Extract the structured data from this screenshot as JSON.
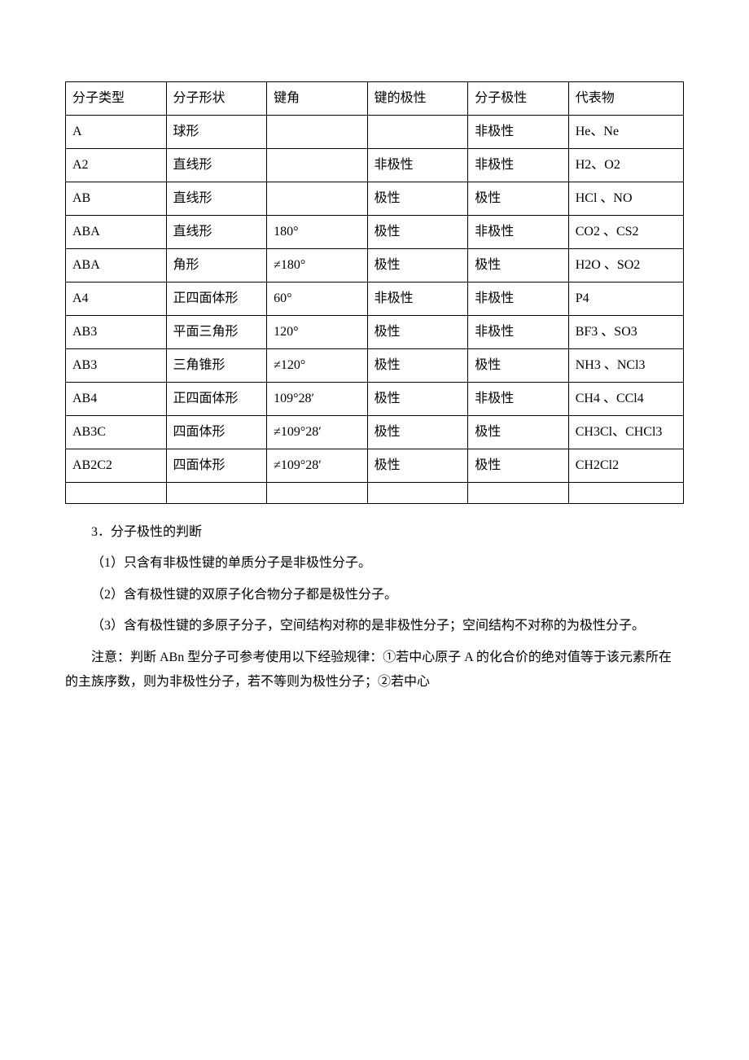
{
  "table": {
    "columns": [
      "分子类型",
      "分子形状",
      "键角",
      "键的极性",
      "分子极性",
      "代表物"
    ],
    "rows": [
      [
        "A",
        "球形",
        "",
        "",
        "非极性",
        "He、Ne"
      ],
      [
        "A2",
        "直线形",
        "",
        "非极性",
        "非极性",
        "H2、O2"
      ],
      [
        "AB",
        "直线形",
        "",
        "极性",
        "极性",
        "HCl 、NO"
      ],
      [
        "ABA",
        "直线形",
        "180°",
        "极性",
        "非极性",
        "CO2 、CS2"
      ],
      [
        "ABA",
        "角形",
        "≠180°",
        "极性",
        "极性",
        "H2O 、SO2"
      ],
      [
        "A4",
        "正四面体形",
        "60°",
        "非极性",
        "非极性",
        "P4"
      ],
      [
        "AB3",
        "平面三角形",
        "120°",
        "极性",
        "非极性",
        "BF3 、SO3"
      ],
      [
        "AB3",
        "三角锥形",
        "≠120°",
        "极性",
        "极性",
        "NH3 、NCl3"
      ],
      [
        "AB4",
        "正四面体形",
        "109°28′",
        "极性",
        "非极性",
        "CH4 、CCl4"
      ],
      [
        "AB3C",
        "四面体形",
        "≠109°28′",
        "极性",
        "极性",
        "CH3Cl、CHCl3"
      ],
      [
        "AB2C2",
        "四面体形",
        "≠109°28′",
        "极性",
        "极性",
        "CH2Cl2"
      ]
    ]
  },
  "paragraphs": {
    "p1": "3．分子极性的判断",
    "p2": "（1）只含有非极性键的单质分子是非极性分子。",
    "p3": "（2）含有极性键的双原子化合物分子都是极性分子。",
    "p4": "（3）含有极性键的多原子分子，空间结构对称的是非极性分子；空间结构不对称的为极性分子。",
    "p5": "注意：判断 ABn 型分子可参考使用以下经验规律：①若中心原子 A 的化合价的绝对值等于该元素所在的主族序数，则为非极性分子，若不等则为极性分子；②若中心"
  }
}
